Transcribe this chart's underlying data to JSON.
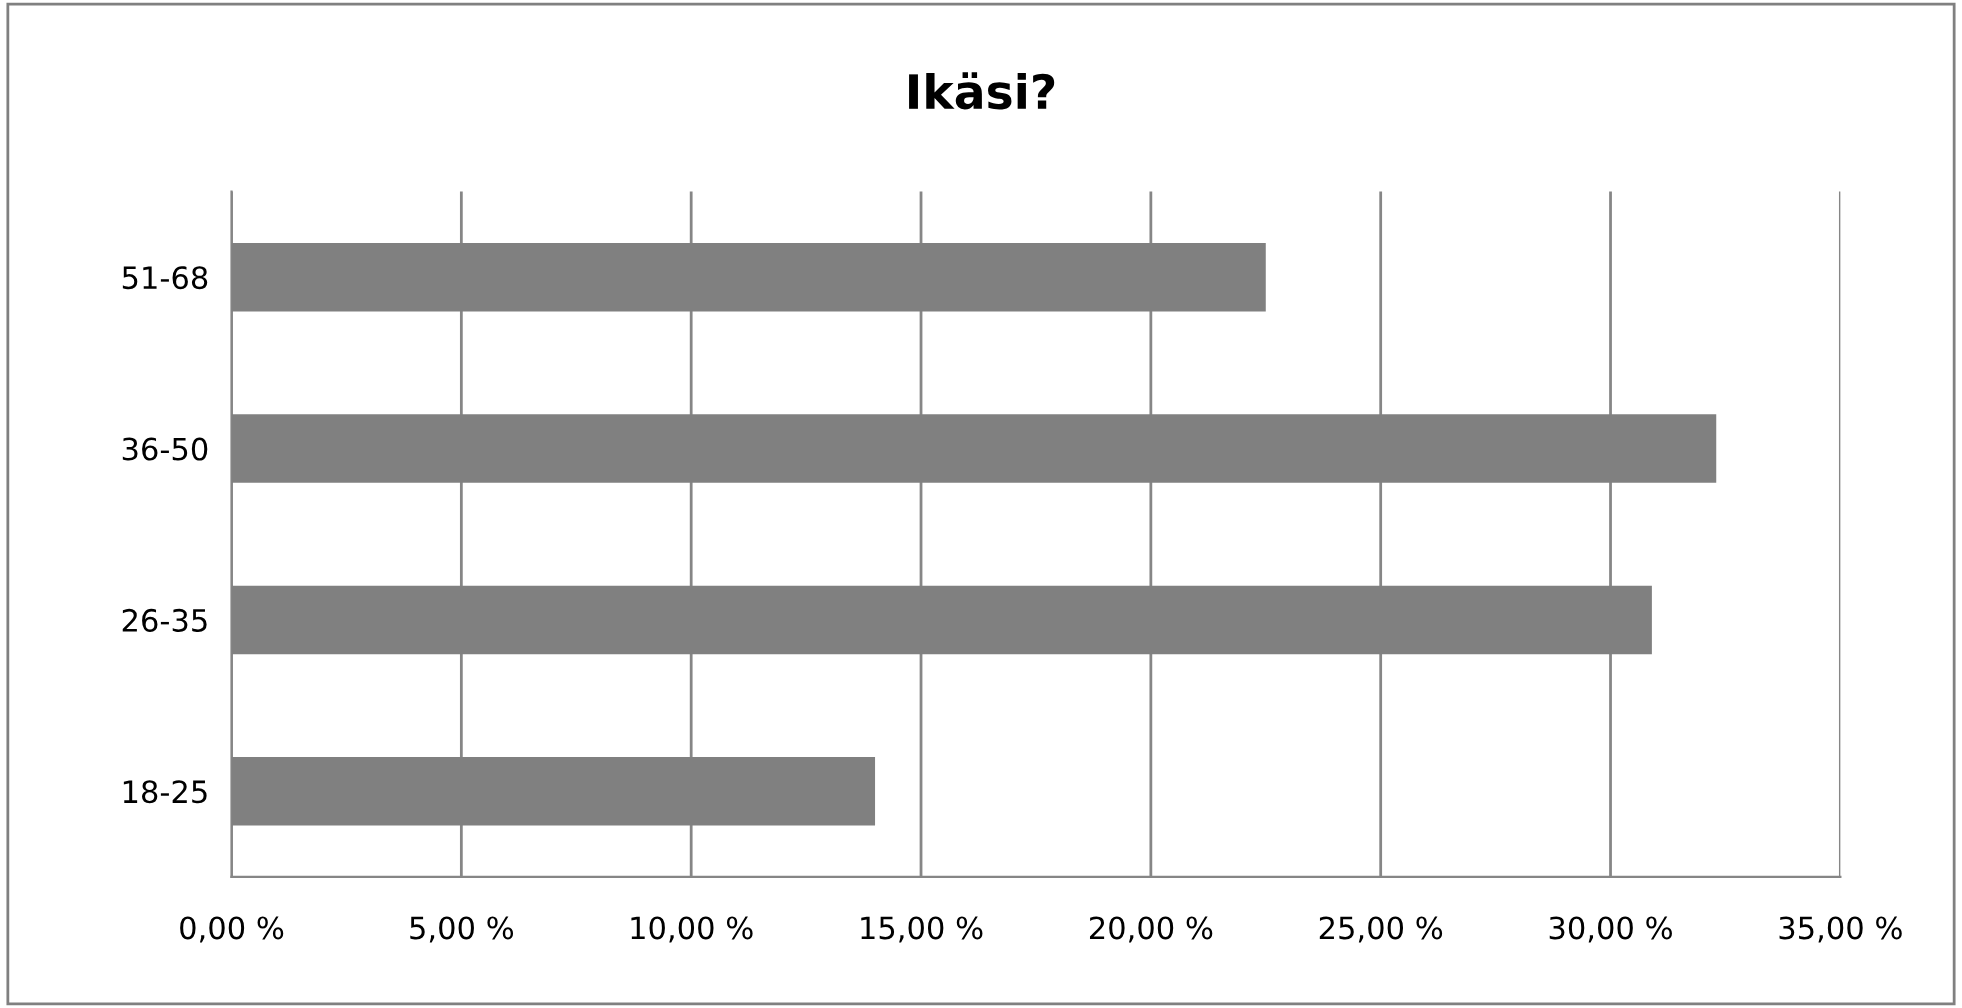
{
  "chart_data": {
    "type": "bar",
    "orientation": "horizontal",
    "title": "Ikäsi?",
    "categories": [
      "51-68",
      "36-50",
      "26-35",
      "18-25"
    ],
    "values": [
      22.5,
      32.3,
      30.9,
      14.0
    ],
    "color": "#808080",
    "xlim": [
      0,
      35
    ],
    "xticks": [
      {
        "value": 0,
        "label": "0,00 %"
      },
      {
        "value": 5,
        "label": "5,00 %"
      },
      {
        "value": 10,
        "label": "10,00 %"
      },
      {
        "value": 15,
        "label": "15,00 %"
      },
      {
        "value": 20,
        "label": "20,00 %"
      },
      {
        "value": 25,
        "label": "25,00 %"
      },
      {
        "value": 30,
        "label": "30,00 %"
      },
      {
        "value": 35,
        "label": "35,00 %"
      }
    ],
    "grid": "x",
    "legend": false
  }
}
